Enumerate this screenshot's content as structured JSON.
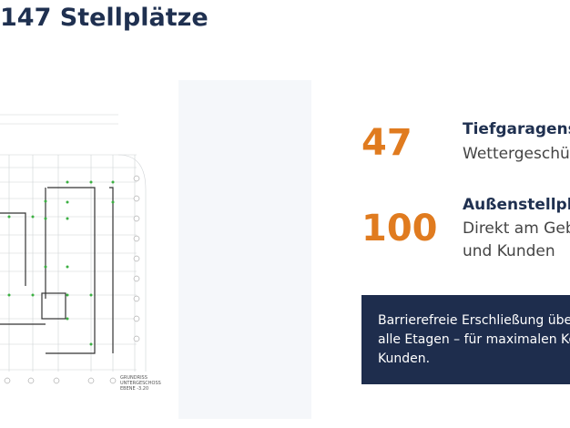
{
  "header": {
    "title": "147 Stellplätze"
  },
  "plan": {
    "caption": [
      "GRUNDRISS",
      "UNTERGESCHOSS",
      "EBENE -3.20"
    ]
  },
  "stats": [
    {
      "number": "47",
      "label": "Tiefgaragens",
      "lines": [
        "Wettergeschüt"
      ]
    },
    {
      "number": "100",
      "label": "Außenstellpl",
      "lines": [
        "Direkt am Geb",
        "und Kunden"
      ]
    }
  ],
  "note": {
    "lines": [
      "Barrierefreie Erschließung über",
      "alle Etagen – für maximalen Kom",
      "Kunden."
    ]
  }
}
